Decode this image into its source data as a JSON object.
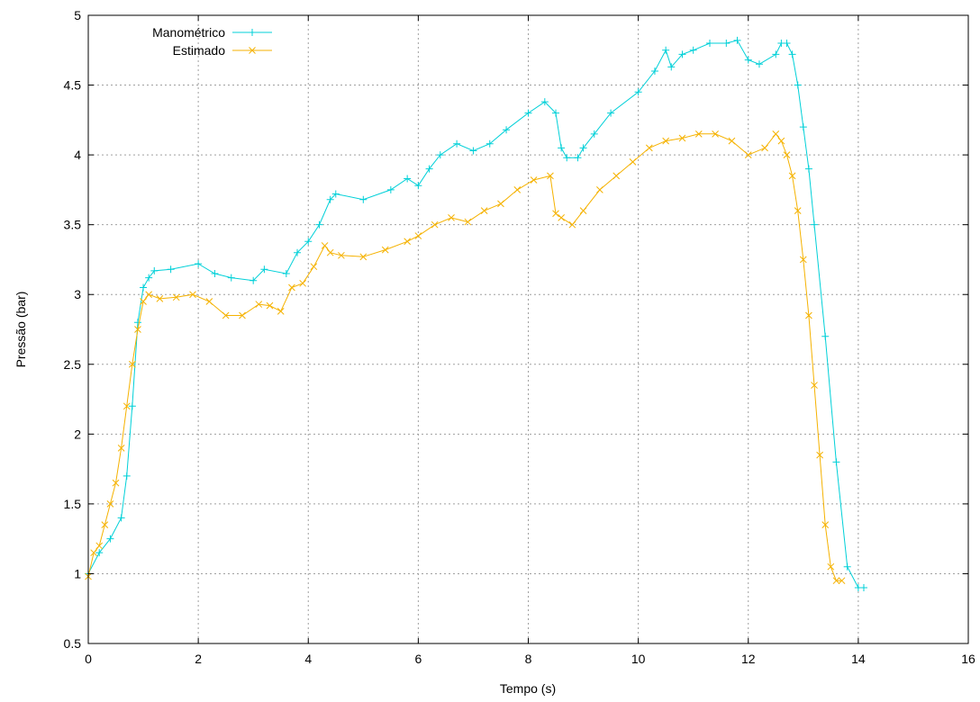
{
  "chart_data": {
    "type": "line",
    "title": "",
    "xlabel": "Tempo (s)",
    "ylabel": "Pressão (bar)",
    "xlim": [
      0,
      16
    ],
    "ylim": [
      0.5,
      5
    ],
    "x_ticks": [
      "0",
      "2",
      "4",
      "6",
      "8",
      "10",
      "12",
      "14",
      "16"
    ],
    "y_ticks": [
      "0.5",
      "1",
      "1.5",
      "2",
      "2.5",
      "3",
      "3.5",
      "4",
      "4.5",
      "5"
    ],
    "grid": true,
    "legend_position": "top-left",
    "series": [
      {
        "name": "Manométrico",
        "color": "#00d0d8",
        "marker": "plus",
        "x": [
          0,
          0.2,
          0.4,
          0.6,
          0.7,
          0.8,
          0.9,
          1.0,
          1.1,
          1.2,
          1.5,
          2.0,
          2.3,
          2.6,
          3.0,
          3.2,
          3.6,
          3.8,
          4.0,
          4.2,
          4.4,
          4.5,
          5.0,
          5.5,
          5.8,
          6.0,
          6.2,
          6.4,
          6.7,
          7.0,
          7.3,
          7.6,
          8.0,
          8.3,
          8.5,
          8.6,
          8.7,
          8.9,
          9.0,
          9.2,
          9.5,
          10.0,
          10.3,
          10.5,
          10.6,
          10.8,
          11.0,
          11.3,
          11.6,
          11.8,
          12.0,
          12.2,
          12.5,
          12.6,
          12.7,
          12.8,
          12.9,
          13.0,
          13.1,
          13.2,
          13.4,
          13.6,
          13.8,
          14.0,
          14.1
        ],
        "values": [
          1.0,
          1.15,
          1.25,
          1.4,
          1.7,
          2.2,
          2.8,
          3.05,
          3.12,
          3.17,
          3.18,
          3.22,
          3.15,
          3.12,
          3.1,
          3.18,
          3.15,
          3.3,
          3.38,
          3.5,
          3.68,
          3.72,
          3.68,
          3.75,
          3.83,
          3.78,
          3.9,
          4.0,
          4.08,
          4.03,
          4.08,
          4.18,
          4.3,
          4.38,
          4.3,
          4.05,
          3.98,
          3.98,
          4.05,
          4.15,
          4.3,
          4.45,
          4.6,
          4.75,
          4.63,
          4.72,
          4.75,
          4.8,
          4.8,
          4.82,
          4.68,
          4.65,
          4.72,
          4.8,
          4.8,
          4.72,
          4.5,
          4.2,
          3.9,
          3.5,
          2.7,
          1.8,
          1.05,
          0.9,
          0.9
        ]
      },
      {
        "name": "Estimado",
        "color": "#f5b200",
        "marker": "x",
        "x": [
          0,
          0.1,
          0.2,
          0.3,
          0.4,
          0.5,
          0.6,
          0.7,
          0.8,
          0.9,
          1.0,
          1.1,
          1.3,
          1.6,
          1.9,
          2.2,
          2.5,
          2.8,
          3.1,
          3.3,
          3.5,
          3.7,
          3.9,
          4.1,
          4.3,
          4.4,
          4.6,
          5.0,
          5.4,
          5.8,
          6.0,
          6.3,
          6.6,
          6.9,
          7.2,
          7.5,
          7.8,
          8.1,
          8.4,
          8.5,
          8.6,
          8.8,
          9.0,
          9.3,
          9.6,
          9.9,
          10.2,
          10.5,
          10.8,
          11.1,
          11.4,
          11.7,
          12.0,
          12.3,
          12.5,
          12.6,
          12.7,
          12.8,
          12.9,
          13.0,
          13.1,
          13.2,
          13.3,
          13.4,
          13.5,
          13.6,
          13.7
        ],
        "values": [
          0.98,
          1.15,
          1.2,
          1.35,
          1.5,
          1.65,
          1.9,
          2.2,
          2.5,
          2.75,
          2.95,
          3.0,
          2.97,
          2.98,
          3.0,
          2.95,
          2.85,
          2.85,
          2.93,
          2.92,
          2.88,
          3.05,
          3.08,
          3.2,
          3.35,
          3.3,
          3.28,
          3.27,
          3.32,
          3.38,
          3.42,
          3.5,
          3.55,
          3.52,
          3.6,
          3.65,
          3.75,
          3.82,
          3.85,
          3.58,
          3.55,
          3.5,
          3.6,
          3.75,
          3.85,
          3.95,
          4.05,
          4.1,
          4.12,
          4.15,
          4.15,
          4.1,
          4.0,
          4.05,
          4.15,
          4.1,
          4.0,
          3.85,
          3.6,
          3.25,
          2.85,
          2.35,
          1.85,
          1.35,
          1.05,
          0.95,
          0.95
        ]
      }
    ]
  }
}
